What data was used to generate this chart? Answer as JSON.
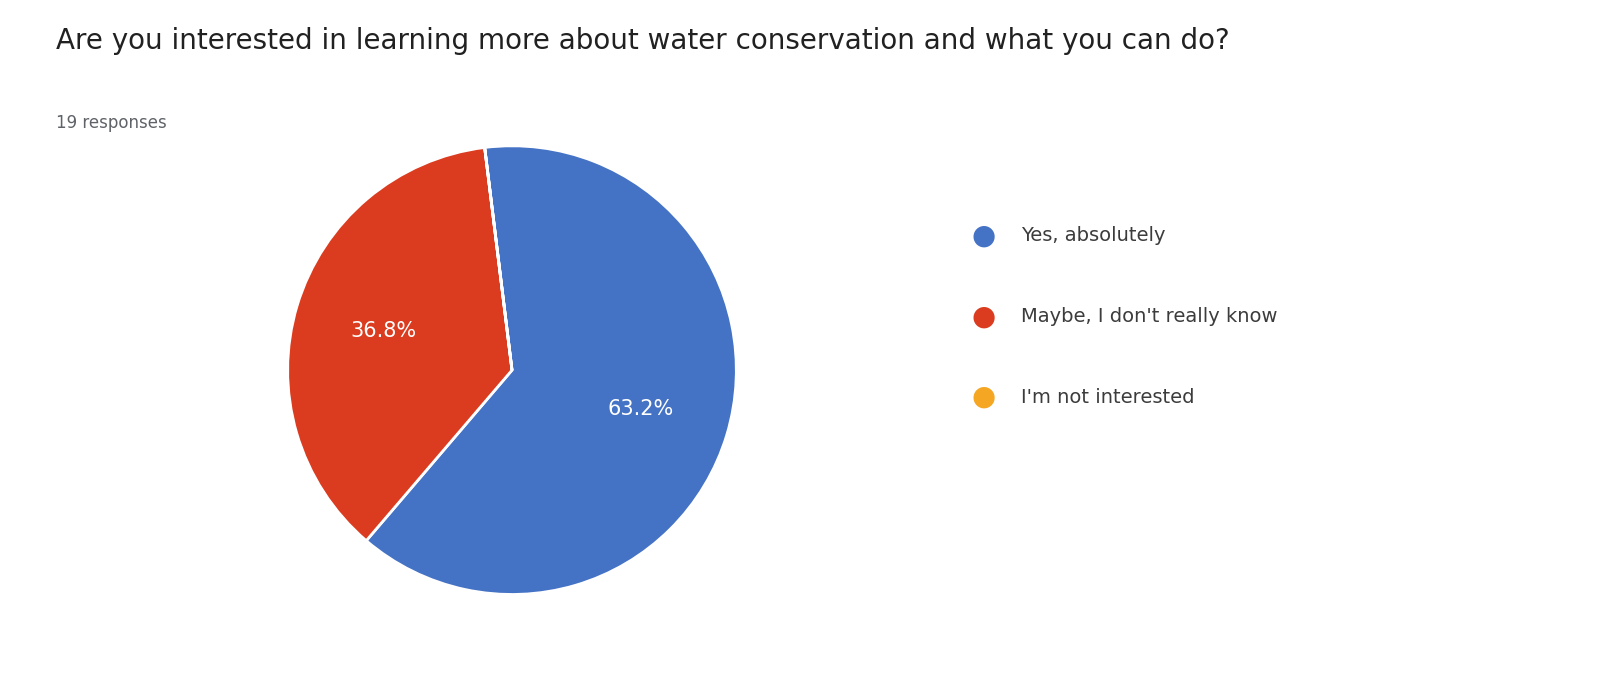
{
  "title": "Are you interested in learning more about water conservation and what you can do?",
  "subtitle": "19 responses",
  "slices": [
    63.2,
    36.8,
    0.001
  ],
  "labels": [
    "Yes, absolutely",
    "Maybe, I don't really know",
    "I'm not interested"
  ],
  "colors": [
    "#4472c4",
    "#db3b1e",
    "#f5a623"
  ],
  "slice_labels": [
    "63.2%",
    "36.8%",
    ""
  ],
  "background_color": "#ffffff",
  "title_fontsize": 20,
  "subtitle_fontsize": 12,
  "legend_fontsize": 14
}
